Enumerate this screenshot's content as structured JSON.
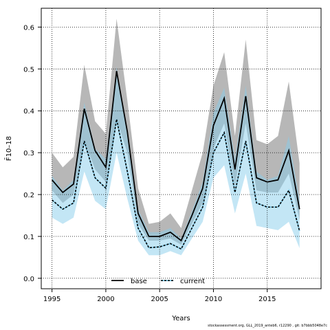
{
  "chart_data": {
    "type": "line",
    "xlabel": "Years",
    "ylabel": "F̄10–18",
    "xlim": [
      1994,
      2020
    ],
    "ylim": [
      -0.025,
      0.645
    ],
    "xticks": [
      1995,
      2000,
      2005,
      2010,
      2015
    ],
    "yticks": [
      0.0,
      0.1,
      0.2,
      0.3,
      0.4,
      0.5,
      0.6
    ],
    "grid": true,
    "legend": "bottom-center",
    "x": [
      1995,
      1996,
      1997,
      1998,
      1999,
      2000,
      2001,
      2002,
      2003,
      2004,
      2005,
      2006,
      2007,
      2008,
      2009,
      2010,
      2011,
      2012,
      2013,
      2014,
      2015,
      2016,
      2017,
      2018
    ],
    "series": [
      {
        "name": "base",
        "color": "#000000",
        "band_color": "#999999",
        "values": [
          0.235,
          0.205,
          0.225,
          0.405,
          0.305,
          0.265,
          0.495,
          0.35,
          0.155,
          0.1,
          0.1,
          0.11,
          0.09,
          0.15,
          0.215,
          0.365,
          0.43,
          0.26,
          0.435,
          0.24,
          0.23,
          0.235,
          0.305,
          0.165
        ],
        "lower": [
          0.21,
          0.18,
          0.2,
          0.33,
          0.26,
          0.23,
          0.38,
          0.3,
          0.13,
          0.09,
          0.09,
          0.095,
          0.08,
          0.13,
          0.18,
          0.31,
          0.37,
          0.22,
          0.37,
          0.21,
          0.205,
          0.205,
          0.25,
          0.14
        ],
        "upper": [
          0.3,
          0.265,
          0.29,
          0.51,
          0.375,
          0.345,
          0.62,
          0.425,
          0.215,
          0.13,
          0.135,
          0.155,
          0.12,
          0.21,
          0.3,
          0.46,
          0.54,
          0.34,
          0.57,
          0.33,
          0.32,
          0.34,
          0.47,
          0.275
        ]
      },
      {
        "name": "current",
        "color": "#002a6e",
        "band_color": "#87ceeb",
        "values": [
          0.187,
          0.165,
          0.18,
          0.328,
          0.24,
          0.215,
          0.38,
          0.255,
          0.12,
          0.073,
          0.075,
          0.083,
          0.07,
          0.12,
          0.17,
          0.3,
          0.348,
          0.205,
          0.328,
          0.18,
          0.17,
          0.17,
          0.21,
          0.113
        ],
        "lower": [
          0.145,
          0.13,
          0.145,
          0.255,
          0.185,
          0.165,
          0.3,
          0.19,
          0.09,
          0.055,
          0.055,
          0.065,
          0.055,
          0.095,
          0.135,
          0.24,
          0.27,
          0.155,
          0.25,
          0.125,
          0.12,
          0.115,
          0.135,
          0.072
        ],
        "upper": [
          0.245,
          0.21,
          0.235,
          0.42,
          0.31,
          0.285,
          0.505,
          0.345,
          0.165,
          0.11,
          0.11,
          0.12,
          0.095,
          0.16,
          0.23,
          0.395,
          0.455,
          0.285,
          0.46,
          0.255,
          0.235,
          0.245,
          0.34,
          0.185
        ]
      }
    ]
  },
  "footer": "stockassessment.org, GLL_2019_anteb6, r12290 , git: b7bbb5048e7c"
}
